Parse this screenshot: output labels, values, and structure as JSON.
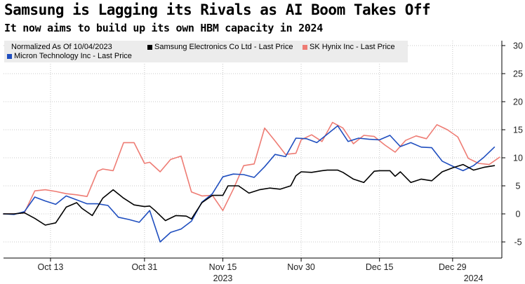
{
  "title": "Samsung is Lagging its Rivals as AI Boom Takes Off",
  "subtitle": "It now aims to build up its own HBM capacity in 2024",
  "chart_data": {
    "type": "line",
    "legend_note": "Normalized As Of 10/04/2023",
    "x_tick_labels": [
      "Oct 13",
      "Oct 31",
      "Nov 15",
      "Nov 30",
      "Dec 15",
      "Dec 29"
    ],
    "x_tick_days": [
      9,
      27,
      42,
      57,
      72,
      86
    ],
    "x_year_labels": [
      {
        "text": "2023",
        "day": 42
      },
      {
        "text": "2024",
        "day": 90
      }
    ],
    "x_range": [
      0,
      95
    ],
    "y_ticks": [
      -5,
      0,
      5,
      10,
      15,
      20,
      25,
      30
    ],
    "ylim": [
      -7.5,
      31
    ],
    "grid": true,
    "series": [
      {
        "name": "Samsung Electronics Co Ltd - Last Price",
        "color": "#000000",
        "x": [
          0,
          2,
          4,
          6,
          8,
          9,
          10,
          12,
          14,
          15,
          17,
          19,
          21,
          23,
          25,
          27,
          28,
          29,
          31,
          33,
          35,
          36,
          38,
          40,
          42,
          43,
          45,
          47,
          49,
          51,
          53,
          55,
          56,
          57,
          59,
          61,
          62,
          64,
          65,
          67,
          69,
          71,
          72,
          74,
          75,
          76,
          78,
          80,
          82,
          84,
          86,
          88,
          90,
          92,
          94
        ],
        "values": [
          0,
          0,
          0.2,
          -0.8,
          -2,
          -1.8,
          -1.6,
          1.2,
          2,
          1,
          -0.3,
          2.8,
          4.3,
          2.8,
          1.6,
          1.3,
          1.4,
          0.6,
          -1.2,
          -0.3,
          -0.4,
          -0.9,
          2,
          3.3,
          3.3,
          5,
          5,
          3.7,
          4.3,
          4.6,
          4.4,
          5,
          6.8,
          7.5,
          7.4,
          7.7,
          7.8,
          7.8,
          7.4,
          6.2,
          5.6,
          7.6,
          7.7,
          7.7,
          6.7,
          7.5,
          5.6,
          6.2,
          5.9,
          7.5,
          8.2,
          8.8,
          7.8,
          8.3,
          8.6
        ]
      },
      {
        "name": "SK Hynix Inc - Last Price",
        "color": "#ee7c74",
        "x": [
          0,
          2,
          4,
          6,
          8,
          10,
          12,
          14,
          16,
          18,
          19,
          21,
          23,
          25,
          27,
          28,
          30,
          32,
          34,
          36,
          38,
          40,
          42,
          44,
          46,
          48,
          50,
          52,
          54,
          56,
          57,
          59,
          61,
          63,
          65,
          67,
          69,
          71,
          73,
          75,
          77,
          79,
          81,
          83,
          85,
          87,
          89,
          91,
          93,
          95
        ],
        "values": [
          0,
          0,
          0.2,
          4.1,
          4.3,
          4,
          3.6,
          3.4,
          3.1,
          7.6,
          8,
          7.7,
          12.7,
          12.7,
          9,
          9.2,
          7.5,
          9.7,
          10.3,
          3.9,
          3.2,
          3.3,
          0.6,
          4.4,
          8.6,
          8.9,
          15.3,
          13,
          10.6,
          10.8,
          13.2,
          14.1,
          12.9,
          16.3,
          15.3,
          12.5,
          14,
          13.8,
          12.3,
          11,
          13.1,
          13.9,
          13.4,
          15.9,
          15,
          13.7,
          9.9,
          9,
          8.8,
          10.1
        ]
      },
      {
        "name": "Micron Technology Inc - Last Price",
        "color": "#1f4ebf",
        "x": [
          0,
          2,
          4,
          6,
          8,
          10,
          12,
          14,
          16,
          18,
          20,
          22,
          24,
          26,
          28,
          30,
          32,
          34,
          36,
          38,
          40,
          42,
          44,
          46,
          48,
          50,
          52,
          54,
          56,
          58,
          60,
          62,
          64,
          66,
          68,
          70,
          72,
          74,
          76,
          78,
          80,
          82,
          84,
          86,
          88,
          90,
          92,
          94
        ],
        "values": [
          0,
          -0.1,
          0.4,
          3,
          2.3,
          1.7,
          3.2,
          2.5,
          1.8,
          1.8,
          1.5,
          -0.6,
          -1,
          -1.5,
          0.6,
          -5,
          -3.3,
          -2.7,
          -1.3,
          2.1,
          3.6,
          6.6,
          7.1,
          7,
          6.5,
          8.4,
          10.6,
          10.2,
          13.5,
          13.4,
          12.7,
          14.2,
          15.7,
          12.9,
          13.5,
          13.3,
          13.2,
          14,
          12,
          12.7,
          11.9,
          11.8,
          9.4,
          8.5,
          7.7,
          8.6,
          10.1,
          11.9
        ]
      }
    ]
  }
}
